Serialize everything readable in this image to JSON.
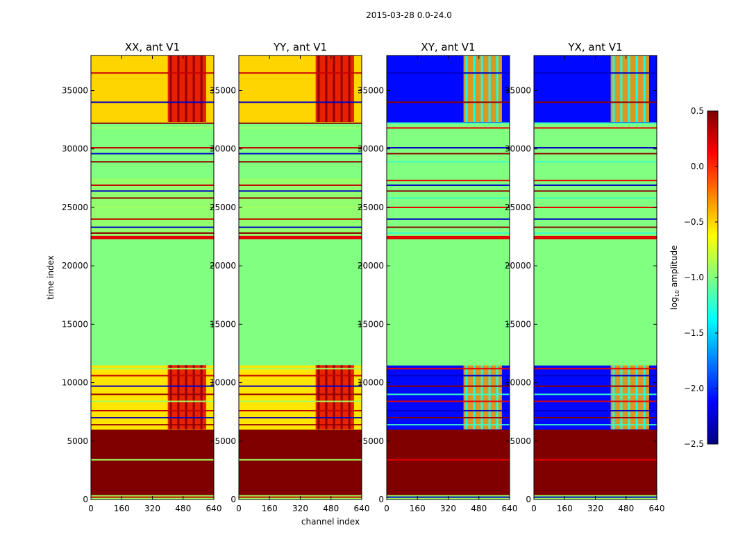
{
  "figure": {
    "suptitle": "2015-03-28 0.0-24.0",
    "xlabel": "channel index",
    "ylabel": "time index"
  },
  "chart_data": {
    "type": "heatmap",
    "title": "2015-03-28 0.0-24.0",
    "xlabel": "channel index",
    "ylabel": "time index",
    "xlim": [
      0,
      640
    ],
    "ylim": [
      0,
      38000
    ],
    "xticks": [
      0,
      160,
      320,
      480,
      640
    ],
    "yticks": [
      0,
      5000,
      10000,
      15000,
      20000,
      25000,
      30000,
      35000
    ],
    "panels": [
      {
        "title": "XX, ant V1",
        "kind": "parallel"
      },
      {
        "title": "YY, ant V1",
        "kind": "parallel"
      },
      {
        "title": "XY, ant V1",
        "kind": "cross"
      },
      {
        "title": "YX, ant V1",
        "kind": "cross"
      }
    ],
    "colorbar": {
      "label": "log10 amplitude",
      "label_main": "log",
      "label_sub": "10",
      "label_tail": " amplitude",
      "range": [
        -2.5,
        0.5
      ],
      "ticks": [
        "0.5",
        "0.0",
        "−0.5",
        "−1.0",
        "−1.5",
        "−2.0",
        "−2.5"
      ],
      "tick_values": [
        0.5,
        0.0,
        -0.5,
        -1.0,
        -1.5,
        -2.0,
        -2.5
      ],
      "colormap": "jet"
    },
    "time_segments": [
      {
        "t0": 0,
        "t1": 400,
        "parallel": -0.9,
        "cross": -0.9
      },
      {
        "t0": 400,
        "t1": 6000,
        "parallel": 0.5,
        "cross": 0.5
      },
      {
        "t0": 6000,
        "t1": 11500,
        "parallel": -0.55,
        "cross": -2.1
      },
      {
        "t0": 11500,
        "t1": 22300,
        "parallel": -1.0,
        "cross": -1.0
      },
      {
        "t0": 22300,
        "t1": 22600,
        "parallel": 0.2,
        "cross": 0.2
      },
      {
        "t0": 22600,
        "t1": 27500,
        "parallel": -0.95,
        "cross": -1.0
      },
      {
        "t0": 27500,
        "t1": 32300,
        "parallel": -1.0,
        "cross": -1.0
      },
      {
        "t0": 32300,
        "t1": 38000,
        "parallel": -0.5,
        "cross": -2.1
      }
    ],
    "rfi_channel_range": [
      400,
      600
    ],
    "rfi_value_parallel": 0.2,
    "rfi_value_cross": -0.4
  }
}
